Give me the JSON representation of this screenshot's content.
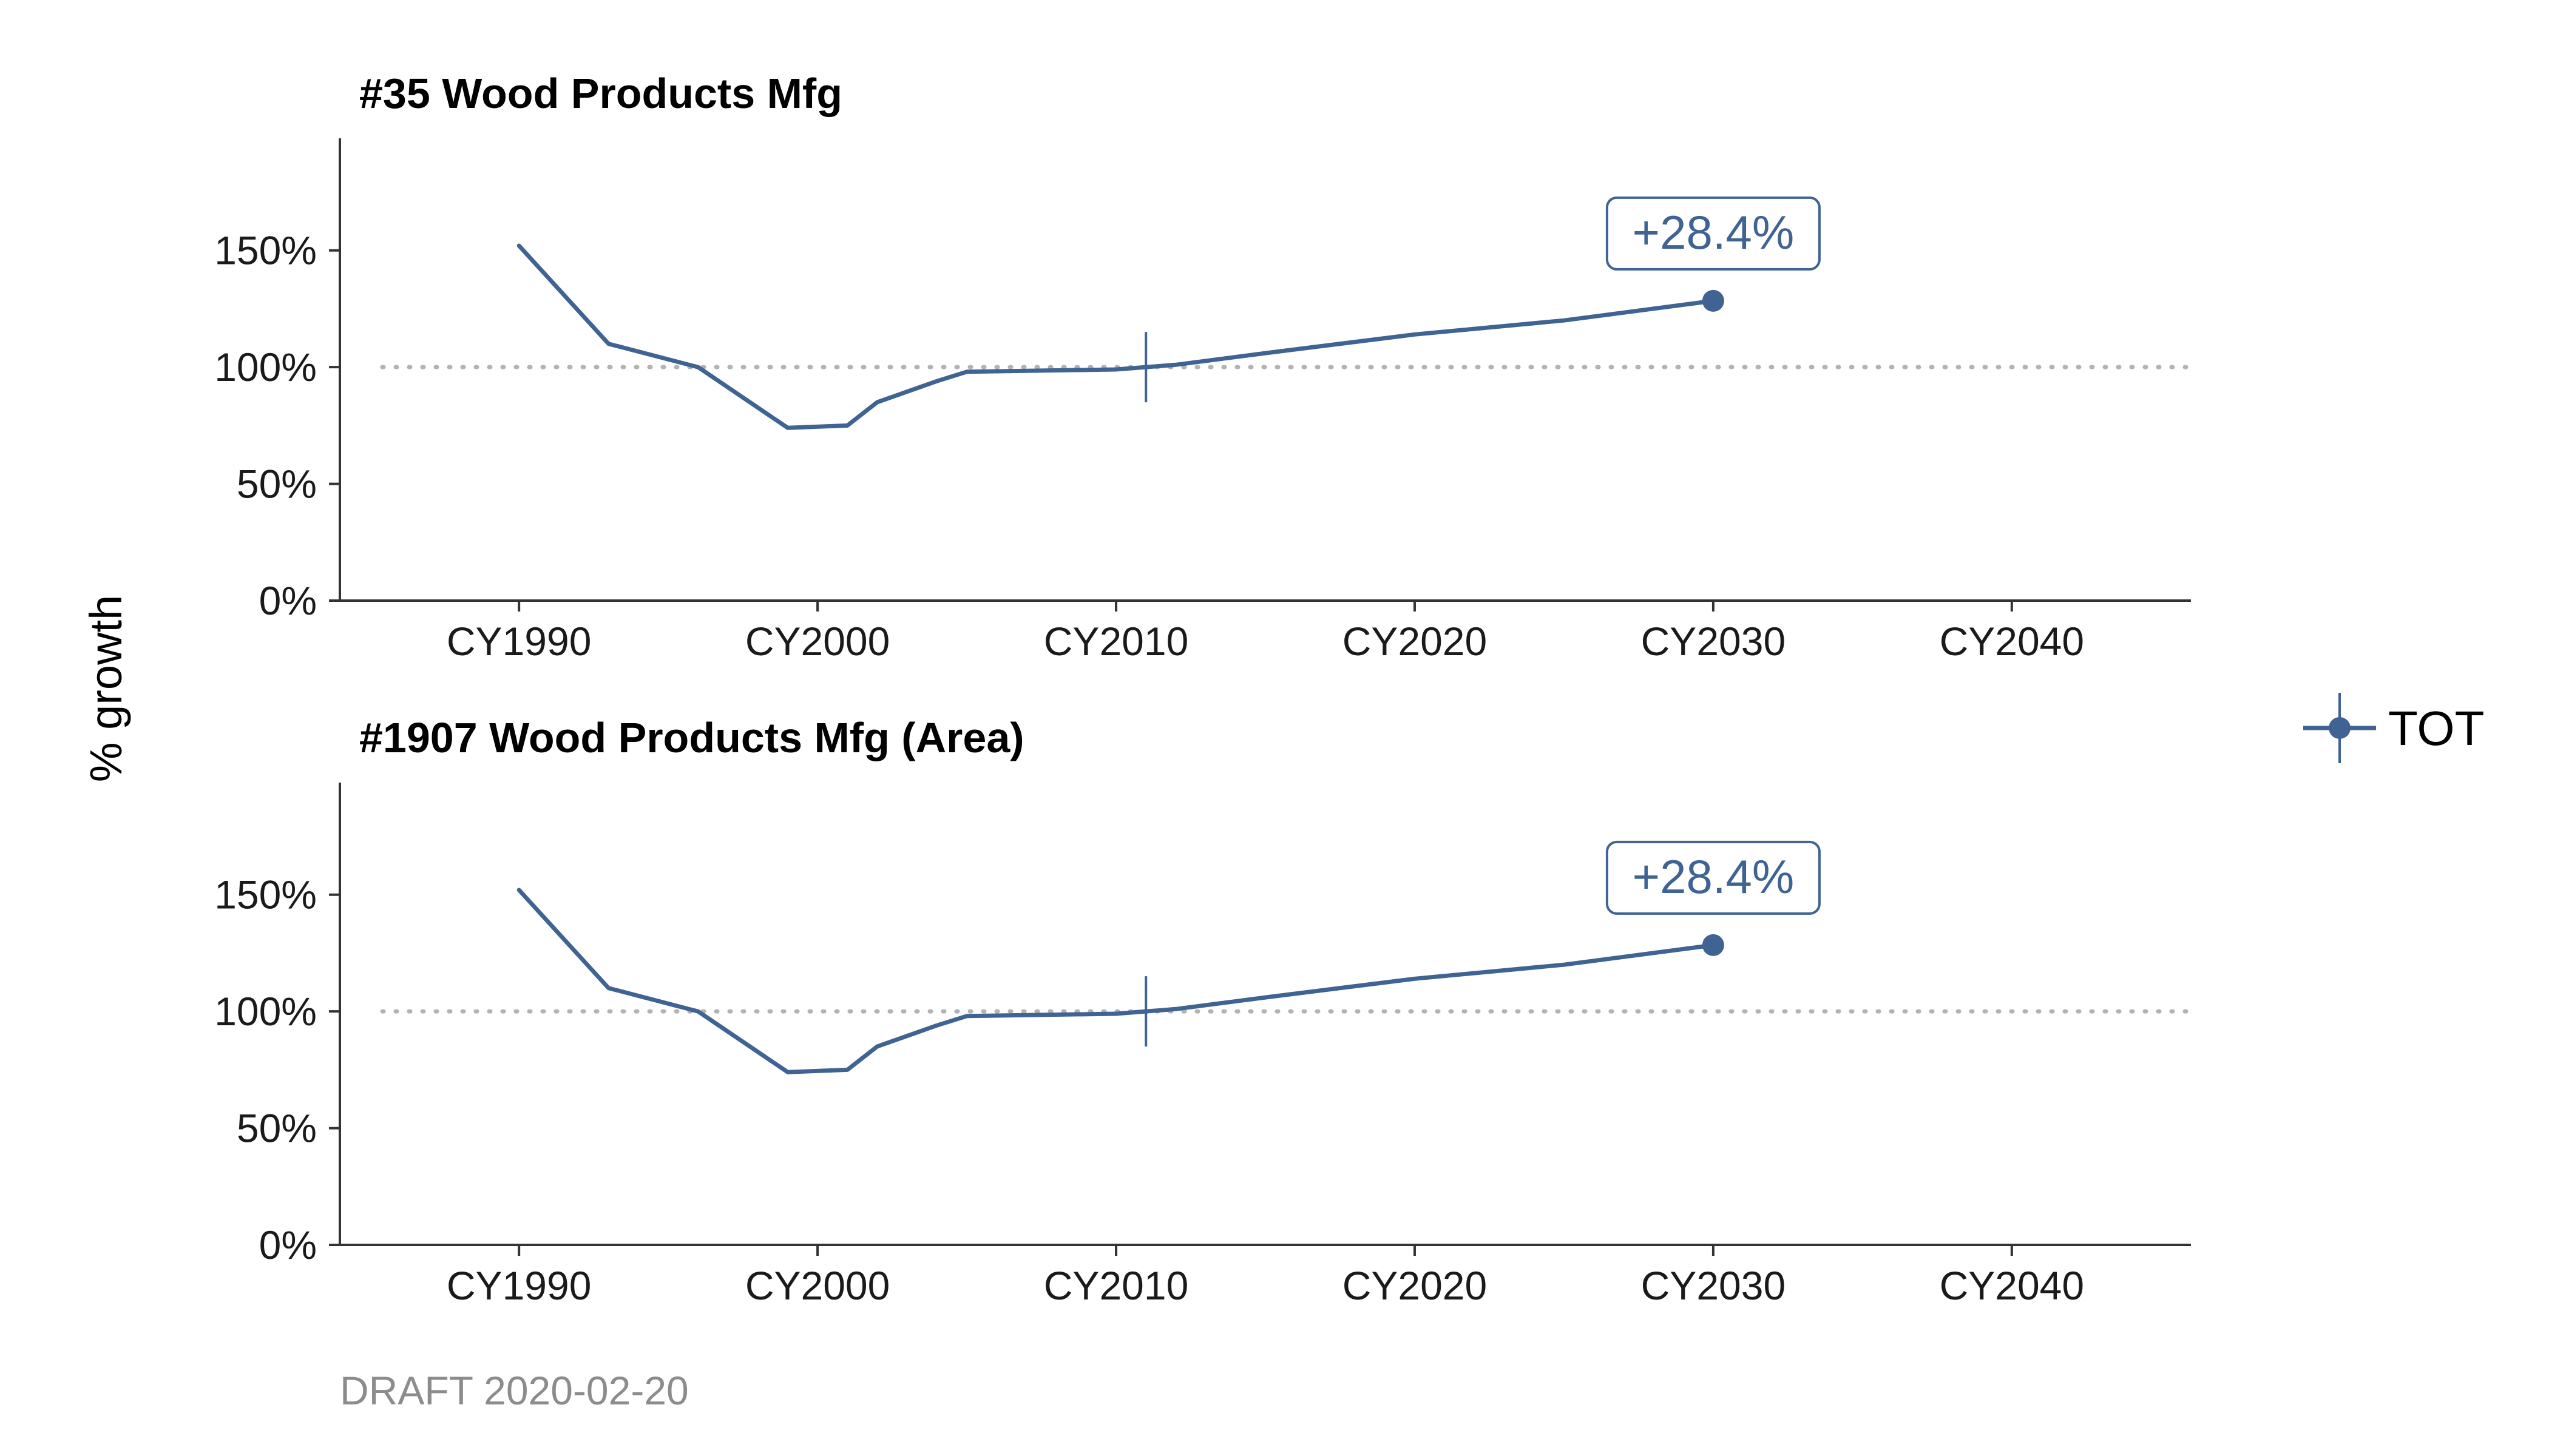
{
  "chart_data": {
    "type": "line",
    "y_axis_title": "% growth",
    "caption": "DRAFT 2020-02-20",
    "legend": {
      "label": "TOT",
      "placement": "right",
      "symbol": "point-with-vertical-bar"
    },
    "colors": {
      "series": "#3f6393",
      "reference_line": "#b3b3b3",
      "axis": "#333333"
    },
    "x_ticks": [
      {
        "value": 1990,
        "label": "CY1990"
      },
      {
        "value": 2000,
        "label": "CY2000"
      },
      {
        "value": 2010,
        "label": "CY2010"
      },
      {
        "value": 2020,
        "label": "CY2020"
      },
      {
        "value": 2030,
        "label": "CY2030"
      },
      {
        "value": 2040,
        "label": "CY2040"
      }
    ],
    "y_ticks": [
      {
        "value": 0,
        "label": "0%"
      },
      {
        "value": 50,
        "label": "50%"
      },
      {
        "value": 100,
        "label": "100%"
      },
      {
        "value": 150,
        "label": "150%"
      }
    ],
    "xlim": [
      1984,
      2046
    ],
    "ylim": [
      0,
      198
    ],
    "panels": [
      {
        "title": "#35 Wood Products Mfg",
        "reference_value": 100,
        "base_year": 2011,
        "end_point": {
          "x": 2030,
          "y": 128.4
        },
        "annotation": "+28.4%",
        "series": [
          {
            "name": "TOT",
            "x": [
              1990,
              1993,
              1996,
              1999,
              2001,
              2002,
              2004,
              2005,
              2010,
              2012,
              2015,
              2020,
              2025,
              2030
            ],
            "values": [
              152,
              110,
              100,
              74,
              75,
              85,
              94,
              98,
              99,
              101,
              106,
              114,
              120,
              128.4
            ]
          }
        ]
      },
      {
        "title": "#1907 Wood Products Mfg (Area)",
        "reference_value": 100,
        "base_year": 2011,
        "end_point": {
          "x": 2030,
          "y": 128.4
        },
        "annotation": "+28.4%",
        "series": [
          {
            "name": "TOT",
            "x": [
              1990,
              1993,
              1996,
              1999,
              2001,
              2002,
              2004,
              2005,
              2010,
              2012,
              2015,
              2020,
              2025,
              2030
            ],
            "values": [
              152,
              110,
              100,
              74,
              75,
              85,
              94,
              98,
              99,
              101,
              106,
              114,
              120,
              128.4
            ]
          }
        ]
      }
    ]
  }
}
